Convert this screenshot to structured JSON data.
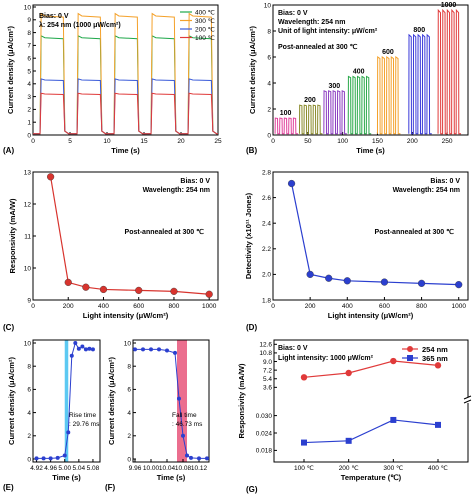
{
  "chart_data": [
    {
      "panel": "(A)",
      "type": "line",
      "annotations": [
        "Bias: 0 V",
        "λ: 254 nm (1000 μW/cm²)"
      ],
      "xlabel": "Time (s)",
      "ylabel": "Current density (μA/cm²)",
      "xlim": [
        0,
        25
      ],
      "ylim": [
        0,
        10
      ],
      "xticks": [
        "0",
        "5",
        "10",
        "15",
        "20",
        "25"
      ],
      "yticks": [
        "0",
        "1",
        "2",
        "3",
        "4",
        "5",
        "6",
        "7",
        "8",
        "9",
        "10"
      ],
      "on_intervals": [
        [
          1,
          4.2
        ],
        [
          6,
          9.2
        ],
        [
          11,
          14.2
        ],
        [
          16,
          19.2
        ],
        [
          21,
          24.2
        ]
      ],
      "series": [
        {
          "name": "400 ℃",
          "color": "#1fa84a",
          "on": 7.6,
          "off": 0.1
        },
        {
          "name": "300 ℃",
          "color": "#f4a12a",
          "on": 9.3,
          "off": 0.1
        },
        {
          "name": "200 ℃",
          "color": "#3a5bd9",
          "on": 4.3,
          "off": 0.1
        },
        {
          "name": "100 ℃",
          "color": "#e03a3a",
          "on": 3.2,
          "off": 0.1
        }
      ]
    },
    {
      "panel": "(B)",
      "type": "line",
      "annotations": [
        "Bias: 0 V",
        "Wavelength: 254 nm",
        "Unit of light intensity: μW/cm²",
        "Post-annealed at 300 ℃"
      ],
      "xlabel": "Time (s)",
      "ylabel": "Current density (μA/cm²)",
      "xlim": [
        0,
        280
      ],
      "ylim": [
        0,
        10
      ],
      "xticks": [
        "0",
        "50",
        "100",
        "150",
        "200",
        "250"
      ],
      "yticks": [
        "0",
        "2",
        "4",
        "6",
        "8",
        "10"
      ],
      "groups": [
        {
          "label": "100",
          "color": "#e0409b",
          "value": 1.3,
          "start": 3
        },
        {
          "label": "200",
          "color": "#8a8a2a",
          "value": 2.3,
          "start": 38
        },
        {
          "label": "300",
          "color": "#8a3ac0",
          "value": 3.4,
          "start": 73
        },
        {
          "label": "400",
          "color": "#2aa84a",
          "value": 4.5,
          "start": 108
        },
        {
          "label": "600",
          "color": "#f4a12a",
          "value": 6.0,
          "start": 150
        },
        {
          "label": "800",
          "color": "#3a3ad9",
          "value": 7.7,
          "start": 195
        },
        {
          "label": "1000",
          "color": "#e03a3a",
          "value": 9.6,
          "start": 237
        }
      ]
    },
    {
      "panel": "(C)",
      "type": "line",
      "annotations": [
        "Bias: 0 V",
        "Wavelength: 254 nm",
        "Post-annealed at 300 ℃"
      ],
      "xlabel": "Light intensity (μW/cm²)",
      "ylabel": "Responsivity (mA/W)",
      "xlim": [
        0,
        1050
      ],
      "ylim": [
        9,
        13
      ],
      "xticks": [
        "0",
        "200",
        "400",
        "600",
        "800",
        "1000"
      ],
      "yticks": [
        "9",
        "10",
        "11",
        "12",
        "13"
      ],
      "color": "#d8342e",
      "x": [
        100,
        200,
        300,
        400,
        600,
        800,
        1000
      ],
      "y": [
        12.85,
        9.55,
        9.4,
        9.33,
        9.3,
        9.27,
        9.18
      ]
    },
    {
      "panel": "(D)",
      "type": "line",
      "annotations": [
        "Bias: 0 V",
        "Wavelength: 254 nm",
        "Post-annealed at 300 ℃"
      ],
      "xlabel": "Light intensity (μW/cm²)",
      "ylabel": "Detectivity (x10¹¹ Jones)",
      "xlim": [
        0,
        1050
      ],
      "ylim": [
        1.8,
        2.8
      ],
      "xticks": [
        "0",
        "200",
        "400",
        "600",
        "800",
        "1000"
      ],
      "yticks": [
        "1.8",
        "2.0",
        "2.2",
        "2.4",
        "2.6",
        "2.8"
      ],
      "color": "#2b3fcf",
      "x": [
        100,
        200,
        300,
        400,
        600,
        800,
        1000
      ],
      "y": [
        2.71,
        2.0,
        1.97,
        1.95,
        1.94,
        1.93,
        1.92
      ]
    },
    {
      "panel": "(E)",
      "type": "line",
      "annotations": [
        "Rise time",
        ": 29.76 ms"
      ],
      "xlabel": "Time (s)",
      "ylabel": "Current density (μA/cm²)",
      "xlim": [
        4.91,
        5.1
      ],
      "ylim": [
        0,
        10
      ],
      "xticks": [
        "4.92",
        "4.96",
        "5.00",
        "5.04",
        "5.08"
      ],
      "yticks": [
        "0",
        "2",
        "4",
        "6",
        "8",
        "10"
      ],
      "highlight": [
        5.0,
        5.01
      ],
      "highlight_color": "#40c0f0",
      "color": "#2b3fcf",
      "x": [
        4.92,
        4.94,
        4.96,
        4.98,
        5.0,
        5.01,
        5.02,
        5.03,
        5.04,
        5.05,
        5.06,
        5.07,
        5.08
      ],
      "y": [
        0.05,
        0.05,
        0.05,
        0.1,
        0.3,
        2.3,
        8.9,
        10.0,
        9.5,
        9.7,
        9.45,
        9.5,
        9.45
      ]
    },
    {
      "panel": "(F)",
      "type": "line",
      "annotations": [
        "Fall time",
        ": 46.73 ms"
      ],
      "xlabel": "Time (s)",
      "ylabel": "Current density (μA/cm²)",
      "xlim": [
        9.955,
        10.145
      ],
      "ylim": [
        0,
        10
      ],
      "xticks": [
        "9.96",
        "10.00",
        "10.04",
        "10.08",
        "10.12"
      ],
      "yticks": [
        "0",
        "2",
        "4",
        "6",
        "8",
        "10"
      ],
      "highlight": [
        10.065,
        10.09
      ],
      "highlight_color": "#e8557a",
      "color": "#2b3fcf",
      "x": [
        9.96,
        9.98,
        10.0,
        10.02,
        10.04,
        10.06,
        10.07,
        10.08,
        10.09,
        10.1,
        10.12,
        10.14
      ],
      "y": [
        9.45,
        9.45,
        9.45,
        9.45,
        9.35,
        9.15,
        5.2,
        2.0,
        0.3,
        0.1,
        0.05,
        0.05
      ]
    },
    {
      "panel": "(G)",
      "type": "line",
      "annotations": [
        "Bias: 0 V",
        "Light intensity: 1000 μW/cm²"
      ],
      "xlabel": "Temperature (℃)",
      "ylabel": "Responsivity (mA/W)",
      "categories": [
        "100 ℃",
        "200 ℃",
        "300 ℃",
        "400 ℃"
      ],
      "upper_yticks": [
        "3.6",
        "5.4",
        "7.2",
        "9.0",
        "10.8",
        "12.6"
      ],
      "upper_ylim": [
        2.0,
        13.5
      ],
      "lower_yticks": [
        "0.018",
        "0.024",
        "0.030"
      ],
      "lower_ylim": [
        0.014,
        0.034
      ],
      "series": [
        {
          "name": "254 nm",
          "color": "#e03a3a",
          "marker": "circle",
          "values": [
            5.7,
            6.6,
            9.1,
            8.2
          ]
        },
        {
          "name": "365 nm",
          "color": "#2b3fcf",
          "marker": "square",
          "values": [
            0.0207,
            0.0213,
            0.0285,
            0.0268
          ]
        }
      ]
    }
  ]
}
